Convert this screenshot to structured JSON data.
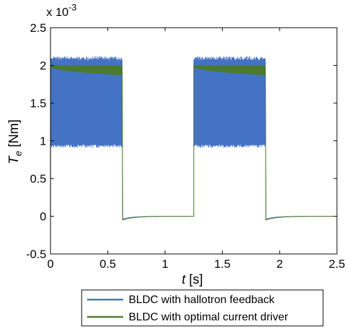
{
  "chart_data": {
    "type": "line",
    "xlabel": {
      "italic": "t",
      "unit": " [s]"
    },
    "ylabel": {
      "italic": "T",
      "subscript": "e",
      "unit": " [Nm]"
    },
    "exponent_label": {
      "base": "x 10",
      "exp": "-3"
    },
    "xlim": [
      0,
      2.5
    ],
    "ylim": [
      -0.5,
      2.5
    ],
    "y_scale_note": "values in units of 10^-3 Nm",
    "xticks": [
      "0",
      "0.5",
      "1",
      "1.5",
      "2",
      "2.5"
    ],
    "yticks": [
      "-0.5",
      "0",
      "0.5",
      "1",
      "1.5",
      "2",
      "2.5"
    ],
    "grid": false,
    "legend_position": "bottom-outside",
    "series": [
      {
        "name": "BLDC with hallotron feedback",
        "color": "#4472c4",
        "style": "high-frequency ripple band during on-intervals",
        "on_intervals": [
          [
            0.0,
            0.625
          ],
          [
            1.25,
            1.875
          ]
        ],
        "band_upper": 2.12,
        "band_lower": 0.95,
        "off_value": 0.0,
        "off_undershoot": -0.04,
        "x": [
          0,
          0.625,
          0.63,
          1.25,
          1.875,
          1.88,
          2.5
        ],
        "y": [
          2.12,
          2.12,
          -0.04,
          0.0,
          2.12,
          -0.04,
          0.0
        ]
      },
      {
        "name": "BLDC with optimal current driver",
        "color": "#4b7a2e",
        "style": "narrow band during on-intervals",
        "on_intervals": [
          [
            0.0,
            0.625
          ],
          [
            1.25,
            1.875
          ]
        ],
        "band_upper": 2.0,
        "band_lower_start": 1.98,
        "band_lower_end": 1.87,
        "off_value": 0.0,
        "off_undershoot": -0.05,
        "x": [
          0,
          0.625,
          0.63,
          1.25,
          1.875,
          1.88,
          2.5
        ],
        "y": [
          2.0,
          2.0,
          -0.05,
          0.0,
          2.0,
          -0.05,
          0.0
        ]
      }
    ]
  }
}
